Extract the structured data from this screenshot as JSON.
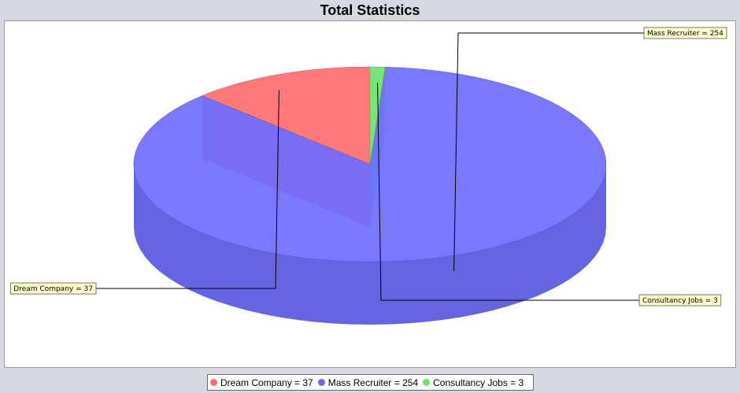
{
  "chart_data": {
    "type": "pie",
    "title": "Total Statistics",
    "categories": [
      "Dream Company",
      "Mass Recruiter",
      "Consultancy Jobs"
    ],
    "values": [
      37,
      254,
      3
    ],
    "colors": [
      "#ff6a6a",
      "#6a6aff",
      "#6ae26a"
    ],
    "slice_labels": [
      "Dream Company = 37",
      "Mass Recruiter = 254",
      "Consultancy Jobs  = 3"
    ],
    "legend_placement": "bottom",
    "style": "3d"
  }
}
